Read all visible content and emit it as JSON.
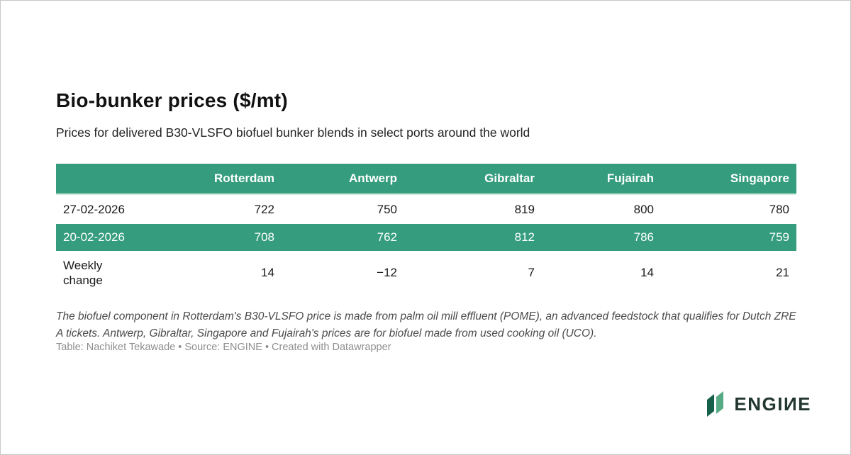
{
  "header": {
    "title": "Bio-bunker prices ($/mt)",
    "subtitle": "Prices for delivered B30-VLSFO biofuel bunker blends in select ports around the world"
  },
  "table": {
    "columns": [
      "",
      "Rotterdam",
      "Antwerp",
      "Gibraltar",
      "Fujairah",
      "Singapore"
    ],
    "rows": [
      {
        "label": "27-02-2026",
        "values": [
          "722",
          "750",
          "819",
          "800",
          "780"
        ],
        "highlight": false
      },
      {
        "label": "20-02-2026",
        "values": [
          "708",
          "762",
          "812",
          "786",
          "759"
        ],
        "highlight": true
      },
      {
        "label": "Weekly change",
        "values": [
          "14",
          "−12",
          "7",
          "14",
          "21"
        ],
        "highlight": false
      }
    ]
  },
  "notes": {
    "footnote": "The biofuel component in Rotterdam's B30-VLSFO price is made from palm oil mill effluent (POME), an advanced feedstock that qualifies for Dutch ZRE A tickets. Antwerp, Gibraltar, Singapore and Fujairah's prices are for biofuel made from used cooking oil (UCO).",
    "credits": "Table: Nachiket Tekawade • Source: ENGINE • Created with Datawrapper"
  },
  "branding": {
    "wordmark": "ENGIИE"
  },
  "colors": {
    "accent_green": "#359d7d",
    "row_separator": "#cfe9df",
    "logo_text_dark": "#22382f",
    "logo_leaf_dark": "#16604a",
    "logo_leaf_light": "#57ab84"
  },
  "chart_data": {
    "type": "table",
    "title": "Bio-bunker prices ($/mt)",
    "subtitle": "Prices for delivered B30-VLSFO biofuel bunker blends in select ports around the world",
    "columns": [
      "",
      "Rotterdam",
      "Antwerp",
      "Gibraltar",
      "Fujairah",
      "Singapore"
    ],
    "rows": [
      [
        "27-02-2026",
        722,
        750,
        819,
        800,
        780
      ],
      [
        "20-02-2026",
        708,
        762,
        812,
        786,
        759
      ],
      [
        "Weekly change",
        14,
        -12,
        7,
        14,
        21
      ]
    ],
    "highlighted_row": "20-02-2026",
    "header_style": "green background, white bold right-aligned text",
    "layout_hints": "first column left-aligned row labels; numeric columns right-aligned"
  }
}
